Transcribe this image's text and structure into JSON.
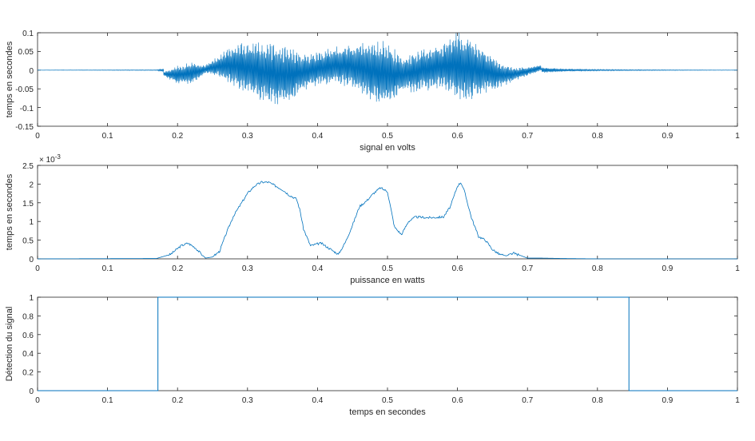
{
  "colors": {
    "line": "#0072bd",
    "axis": "#262626",
    "grid": "#d9d9d9"
  },
  "chart_data": [
    {
      "type": "line",
      "xlabel": "signal en volts",
      "ylabel": "temps en secondes",
      "xlim": [
        0,
        1
      ],
      "ylim": [
        -0.15,
        0.1
      ],
      "xticks": [
        "0",
        "0.1",
        "0.2",
        "0.3",
        "0.4",
        "0.5",
        "0.6",
        "0.7",
        "0.8",
        "0.9",
        "1"
      ],
      "yticks": [
        "0.1",
        "0.05",
        "0",
        "-0.05",
        "-0.1",
        "-0.15"
      ],
      "ytick_values": [
        0.1,
        0.05,
        0,
        -0.05,
        -0.1,
        -0.15
      ],
      "grid": false,
      "envelope": {
        "x": [
          0,
          0.17,
          0.18,
          0.2,
          0.22,
          0.24,
          0.26,
          0.28,
          0.3,
          0.32,
          0.34,
          0.36,
          0.38,
          0.4,
          0.42,
          0.44,
          0.46,
          0.48,
          0.5,
          0.52,
          0.54,
          0.56,
          0.58,
          0.6,
          0.62,
          0.64,
          0.66,
          0.68,
          0.7,
          0.72,
          0.75,
          0.8,
          0.84,
          0.9,
          1
        ],
        "amplitude": [
          0.0005,
          0.001,
          0.005,
          0.025,
          0.03,
          0.012,
          0.03,
          0.06,
          0.07,
          0.08,
          0.085,
          0.075,
          0.05,
          0.045,
          0.05,
          0.055,
          0.07,
          0.085,
          0.09,
          0.05,
          0.055,
          0.06,
          0.06,
          0.095,
          0.085,
          0.06,
          0.035,
          0.02,
          0.012,
          0.008,
          0.004,
          0.002,
          0.0015,
          0.001,
          0.0005
        ]
      }
    },
    {
      "type": "line",
      "xlabel": "puissance en watts",
      "ylabel": "temps en secondes",
      "xlim": [
        0,
        1
      ],
      "ylim": [
        0,
        0.0025
      ],
      "exponent": "× 10",
      "exponent_power": "-3",
      "xticks": [
        "0",
        "0.1",
        "0.2",
        "0.3",
        "0.4",
        "0.5",
        "0.6",
        "0.7",
        "0.8",
        "0.9",
        "1"
      ],
      "yticks": [
        "2.5",
        "2",
        "1.5",
        "1",
        "0.5",
        "0"
      ],
      "ytick_values": [
        2.5,
        2,
        1.5,
        1,
        0.5,
        0
      ],
      "grid": false,
      "x": [
        0,
        0.17,
        0.19,
        0.205,
        0.215,
        0.225,
        0.24,
        0.25,
        0.26,
        0.27,
        0.28,
        0.29,
        0.3,
        0.31,
        0.32,
        0.33,
        0.34,
        0.35,
        0.36,
        0.37,
        0.375,
        0.38,
        0.39,
        0.4,
        0.405,
        0.415,
        0.43,
        0.44,
        0.45,
        0.46,
        0.47,
        0.48,
        0.49,
        0.5,
        0.51,
        0.52,
        0.53,
        0.54,
        0.56,
        0.58,
        0.59,
        0.6,
        0.605,
        0.61,
        0.62,
        0.63,
        0.64,
        0.65,
        0.66,
        0.67,
        0.68,
        0.69,
        0.7,
        0.72,
        0.75,
        0.8,
        1
      ],
      "y": [
        0,
        0.01,
        0.12,
        0.35,
        0.42,
        0.3,
        0.02,
        0.05,
        0.2,
        0.7,
        1.15,
        1.45,
        1.75,
        1.95,
        2.05,
        2.05,
        1.95,
        1.85,
        1.7,
        1.6,
        1.3,
        0.8,
        0.35,
        0.4,
        0.42,
        0.3,
        0.12,
        0.45,
        0.9,
        1.4,
        1.55,
        1.75,
        1.9,
        1.8,
        0.85,
        0.65,
        1.0,
        1.12,
        1.1,
        1.12,
        1.4,
        1.95,
        2.05,
        1.8,
        1.1,
        0.6,
        0.5,
        0.25,
        0.12,
        0.08,
        0.15,
        0.09,
        0.02,
        0.02,
        0.01,
        0,
        0
      ]
    },
    {
      "type": "line",
      "xlabel": "temps en secondes",
      "ylabel": "Détection du signal",
      "xlim": [
        0,
        1
      ],
      "ylim": [
        0,
        1
      ],
      "xticks": [
        "0",
        "0.1",
        "0.2",
        "0.3",
        "0.4",
        "0.5",
        "0.6",
        "0.7",
        "0.8",
        "0.9",
        "1"
      ],
      "yticks": [
        "1",
        "0.8",
        "0.6",
        "0.4",
        "0.2",
        "0"
      ],
      "ytick_values": [
        1,
        0.8,
        0.6,
        0.4,
        0.2,
        0
      ],
      "grid": false,
      "x": [
        0,
        0.172,
        0.172,
        0.845,
        0.845,
        1
      ],
      "y": [
        0,
        0,
        1,
        1,
        0,
        0
      ]
    }
  ]
}
